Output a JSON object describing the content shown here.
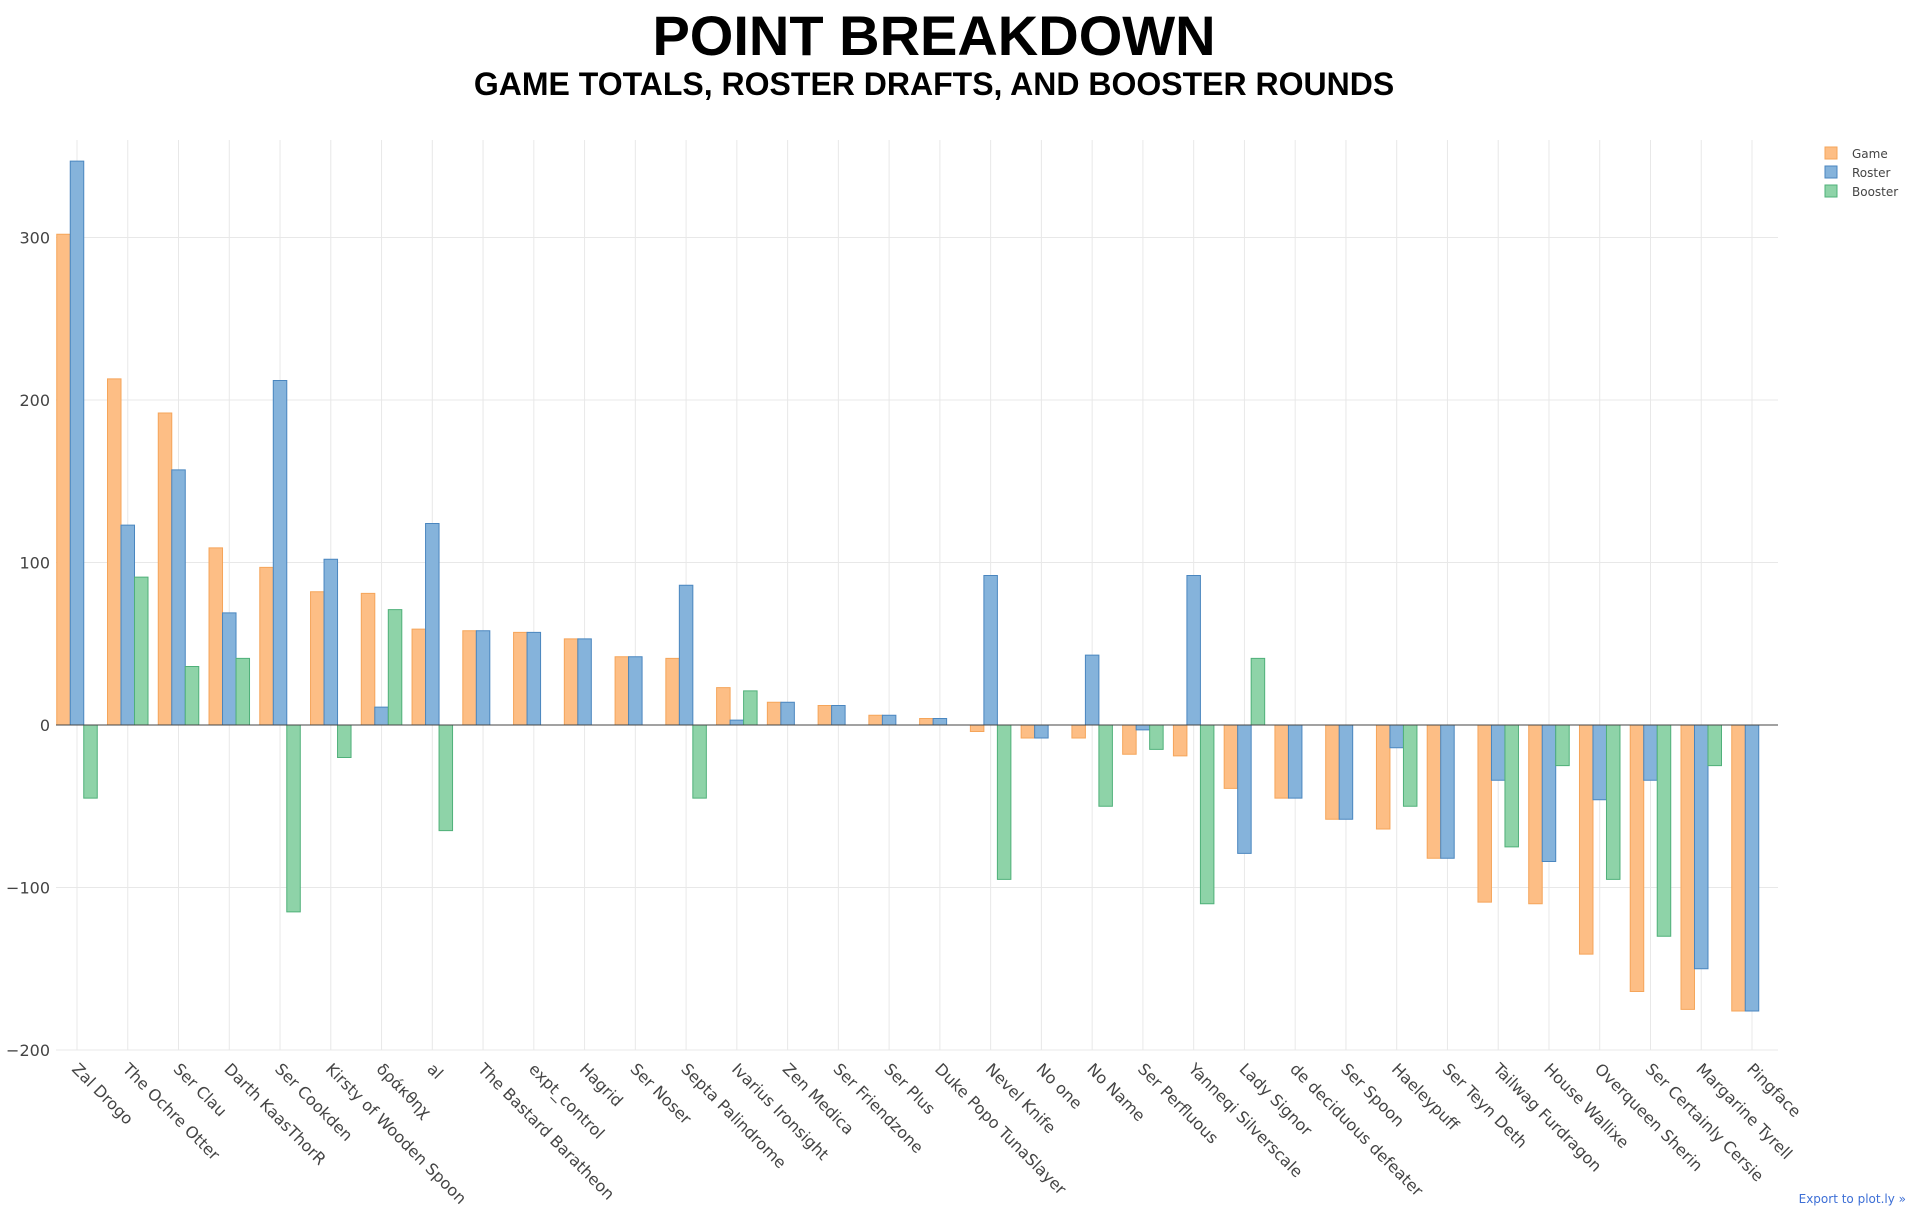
{
  "chart_data": {
    "type": "bar",
    "title": "POINT BREAKDOWN",
    "subtitle": "GAME TOTALS, ROSTER DRAFTS, AND BOOSTER ROUNDS",
    "xlabel": "",
    "ylabel": "",
    "ylim": [
      -200,
      360
    ],
    "yticks": [
      -200,
      -100,
      0,
      100,
      200,
      300
    ],
    "grid": true,
    "legend_position": "top-right",
    "categories": [
      "Zal Drogo",
      "The Ochre Otter",
      "Ser Clau",
      "Darth KaasThorR",
      "Ser Cookden",
      "Kirsty of Wooden Spoon",
      "δράκθηχ",
      "al",
      "The Bastard Baratheon",
      "expt_control",
      "Hagrid",
      "Ser Noser",
      "Septa Palindrome",
      "Ivarius Ironsight",
      "Zen Medica",
      "Ser Friendzone",
      "Ser Plus",
      "Duke Popo TunaSlayer",
      "Nevel Knife",
      "No one",
      "No Name",
      "Ser Perfluous",
      "Yanneqi Silverscale",
      "Lady Signor",
      "de deciduous defeater",
      "Ser Spoon",
      "Haeleypuff",
      "Ser Teyn Deth",
      "Tailwag Furdragon",
      "House Wallixe",
      "Overqueen Sherin",
      "Ser Certainly Cersie",
      "Margarine Tyrell",
      "Pingface"
    ],
    "series": [
      {
        "name": "Game",
        "color": "#fdbe85",
        "stroke": "#f5a55a",
        "values": [
          302,
          213,
          192,
          109,
          97,
          82,
          81,
          59,
          58,
          57,
          53,
          42,
          41,
          23,
          14,
          12,
          6,
          4,
          -4,
          -8,
          -8,
          -18,
          -19,
          -39,
          -45,
          -58,
          -64,
          -82,
          -109,
          -110,
          -141,
          -164,
          -175,
          -176
        ]
      },
      {
        "name": "Roster",
        "color": "#85b3db",
        "stroke": "#4a86bf",
        "values": [
          347,
          123,
          157,
          69,
          212,
          102,
          11,
          124,
          58,
          57,
          53,
          42,
          86,
          3,
          14,
          12,
          6,
          4,
          92,
          -8,
          43,
          -3,
          92,
          -79,
          -45,
          -58,
          -14,
          -82,
          -34,
          -84,
          -46,
          -34,
          -150,
          -176
        ]
      },
      {
        "name": "Booster",
        "color": "#8ed3a8",
        "stroke": "#4fb079",
        "values": [
          -45,
          91,
          36,
          41,
          -115,
          -20,
          71,
          -65,
          0,
          0,
          0,
          0,
          -45,
          21,
          0,
          0,
          0,
          0,
          -95,
          0,
          -50,
          -15,
          -110,
          41,
          0,
          0,
          -50,
          0,
          -75,
          -25,
          -95,
          -130,
          -25,
          0
        ]
      }
    ]
  },
  "export_link": "Export to plot.ly »"
}
